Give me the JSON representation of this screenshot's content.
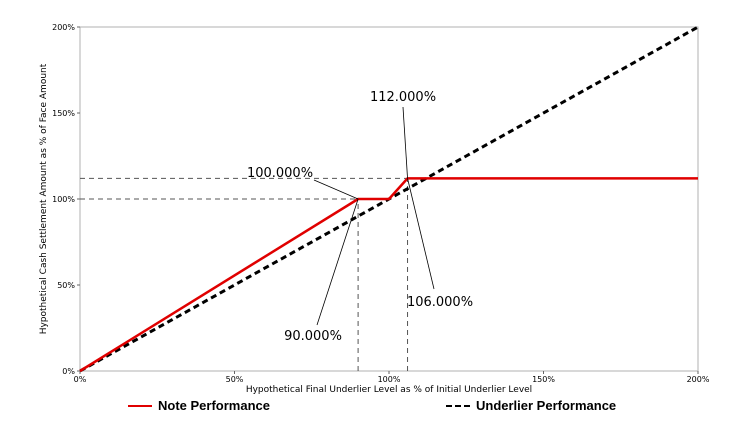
{
  "chart_data": {
    "type": "line",
    "title": "",
    "xlabel": "Hypothetical Final Underlier Level as % of Initial Underlier Level",
    "ylabel": "Hypothetical Cash Settlement Amount as % of Face Amount",
    "xlim": [
      0,
      200
    ],
    "ylim": [
      0,
      200
    ],
    "x_ticks": [
      0,
      50,
      100,
      150,
      200
    ],
    "x_tick_labels": [
      "0%",
      "50%",
      "100%",
      "150%",
      "200%"
    ],
    "y_ticks": [
      0,
      50,
      100,
      150,
      200
    ],
    "y_tick_labels": [
      "0%",
      "50%",
      "100%",
      "150%",
      "200%"
    ],
    "grid": false,
    "legend_position": "bottom",
    "series": [
      {
        "name": "Note Performance",
        "color": "#e00000",
        "style": "solid",
        "x": [
          0,
          90,
          100,
          106,
          200
        ],
        "y": [
          0,
          100,
          100,
          112,
          112
        ]
      },
      {
        "name": "Underlier Performance",
        "color": "#000000",
        "style": "dashed",
        "x": [
          0,
          200
        ],
        "y": [
          0,
          200
        ]
      }
    ],
    "reference_lines": [
      {
        "orientation": "horizontal",
        "y": 100,
        "x_from": 0,
        "x_to": 90
      },
      {
        "orientation": "horizontal",
        "y": 112,
        "x_from": 0,
        "x_to": 106
      },
      {
        "orientation": "vertical",
        "x": 90,
        "y_from": 0,
        "y_to": 100
      },
      {
        "orientation": "vertical",
        "x": 106,
        "y_from": 0,
        "y_to": 112
      }
    ],
    "annotations": [
      {
        "text": "100.000%",
        "point": [
          90,
          100
        ]
      },
      {
        "text": "112.000%",
        "point": [
          106,
          112
        ]
      },
      {
        "text": "90.000%",
        "point": [
          90,
          100
        ]
      },
      {
        "text": "106.000%",
        "point": [
          106,
          112
        ]
      }
    ]
  }
}
